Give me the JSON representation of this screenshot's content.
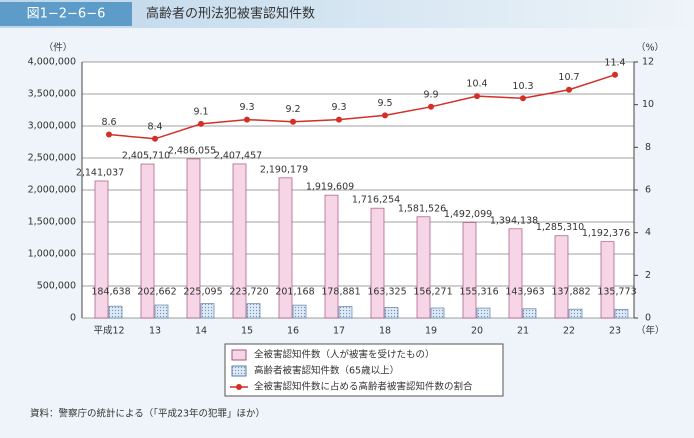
{
  "chart_data": {
    "type": "bar-line",
    "figure_label": "図1−2−6−6",
    "title": "高齢者の刑法犯被害認知件数",
    "y_label": "（件）",
    "y2_label": "（%）",
    "x_unit": "（年）",
    "categories": [
      "平成12",
      "13",
      "14",
      "15",
      "16",
      "17",
      "18",
      "19",
      "20",
      "21",
      "22",
      "23"
    ],
    "series": [
      {
        "name": "全被害認知件数（人が被害を受けたもの）",
        "type": "bar",
        "color": "#f6d6e6",
        "stroke": "#a8557f",
        "values": [
          2141037,
          2405710,
          2486055,
          2407457,
          2190179,
          1919609,
          1716254,
          1581526,
          1492099,
          1394138,
          1285310,
          1192376
        ],
        "value_labels": [
          "2,141,037",
          "2,405,710",
          "2,486,055",
          "2,407,457",
          "2,190,179",
          "1,919,609",
          "1,716,254",
          "1,581,526",
          "1,492,099",
          "1,394,138",
          "1,285,310",
          "1,192,376"
        ]
      },
      {
        "name": "高齢者被害認知件数（65歳以上）",
        "type": "bar",
        "color": "#d3e3f3",
        "stroke": "#5b7fa8",
        "values": [
          184638,
          202662,
          225095,
          223720,
          201168,
          178881,
          163325,
          156271,
          155316,
          143963,
          137882,
          135773
        ],
        "value_labels": [
          "184,638",
          "202,662",
          "225,095",
          "223,720",
          "201,168",
          "178,881",
          "163,325",
          "156,271",
          "155,316",
          "143,963",
          "137,882",
          "135,773"
        ]
      },
      {
        "name": "全被害認知件数に占める高齢者被害認知件数の割合",
        "type": "line",
        "axis": "y2",
        "color": "#d42f27",
        "values": [
          8.6,
          8.4,
          9.1,
          9.3,
          9.2,
          9.3,
          9.5,
          9.9,
          10.4,
          10.3,
          10.7,
          11.4
        ]
      }
    ],
    "ylim": [
      0,
      4000000
    ],
    "yticks": [
      0,
      {
        "value": 500000,
        "label": "500,000"
      },
      {
        "value": 1000000,
        "label": "1,000,000"
      },
      {
        "value": 1500000,
        "label": "1,500,000"
      },
      {
        "value": 2000000,
        "label": "2,000,000"
      },
      {
        "value": 2500000,
        "label": "2,500,000"
      },
      {
        "value": 3000000,
        "label": "3,000,000"
      },
      {
        "value": 3500000,
        "label": "3,500,000"
      },
      {
        "value": 4000000,
        "label": "4,000,000"
      }
    ],
    "y2lim": [
      0,
      12
    ],
    "y2ticks": [
      0,
      2,
      4,
      6,
      8,
      10,
      12
    ],
    "grid": true,
    "source": "資料：警察庁の統計による（「平成23年の犯罪」ほか）"
  }
}
